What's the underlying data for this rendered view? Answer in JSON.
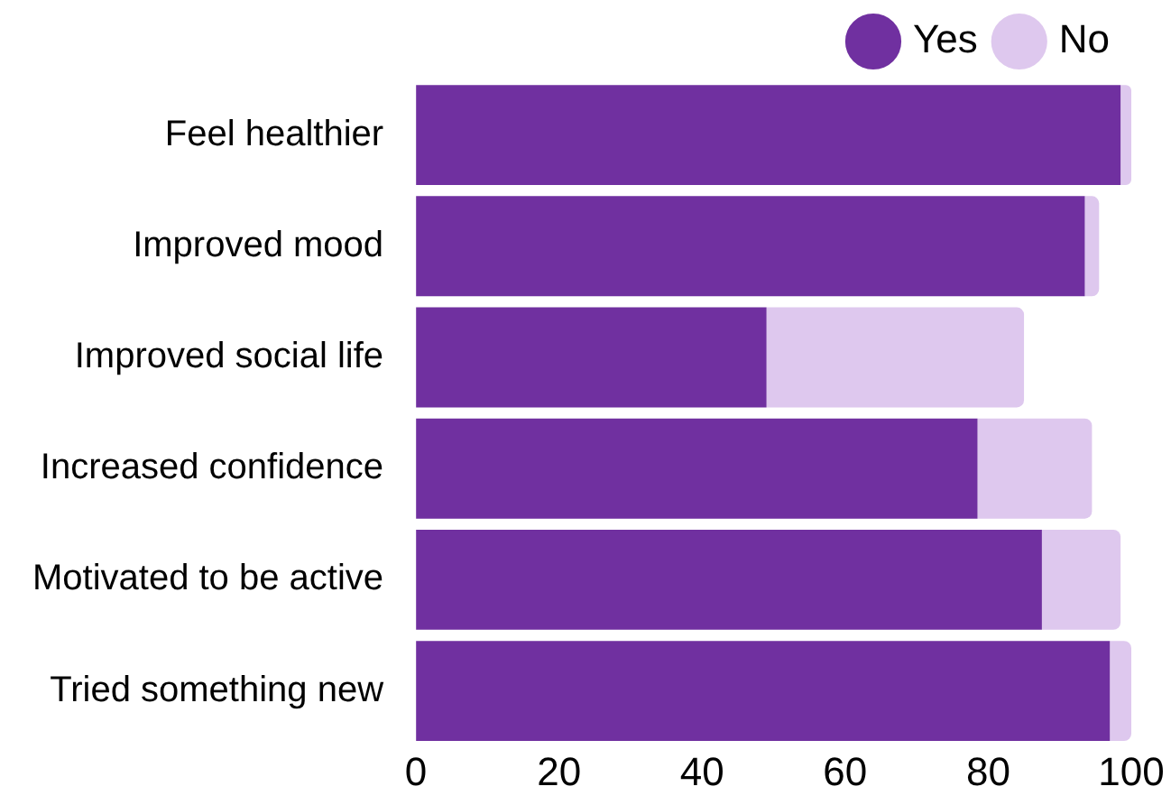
{
  "chart_data": {
    "type": "bar",
    "orientation": "horizontal",
    "stacked": true,
    "legend": "top",
    "grid": false,
    "categories": [
      "Feel healthier",
      "Improved mood",
      "Improved social life",
      "Increased confidence",
      "Motivated to be active",
      "Tried something new"
    ],
    "series": [
      {
        "name": "Yes",
        "color": "#7030a0",
        "values": [
          98.5,
          93.5,
          49,
          78.5,
          87.5,
          97
        ]
      },
      {
        "name": "No",
        "color": "#dec8ee",
        "values": [
          1.5,
          2,
          36,
          16,
          11,
          3
        ]
      }
    ],
    "xlim": [
      0,
      100
    ],
    "xticks": [
      0,
      20,
      40,
      60,
      80,
      100
    ]
  }
}
